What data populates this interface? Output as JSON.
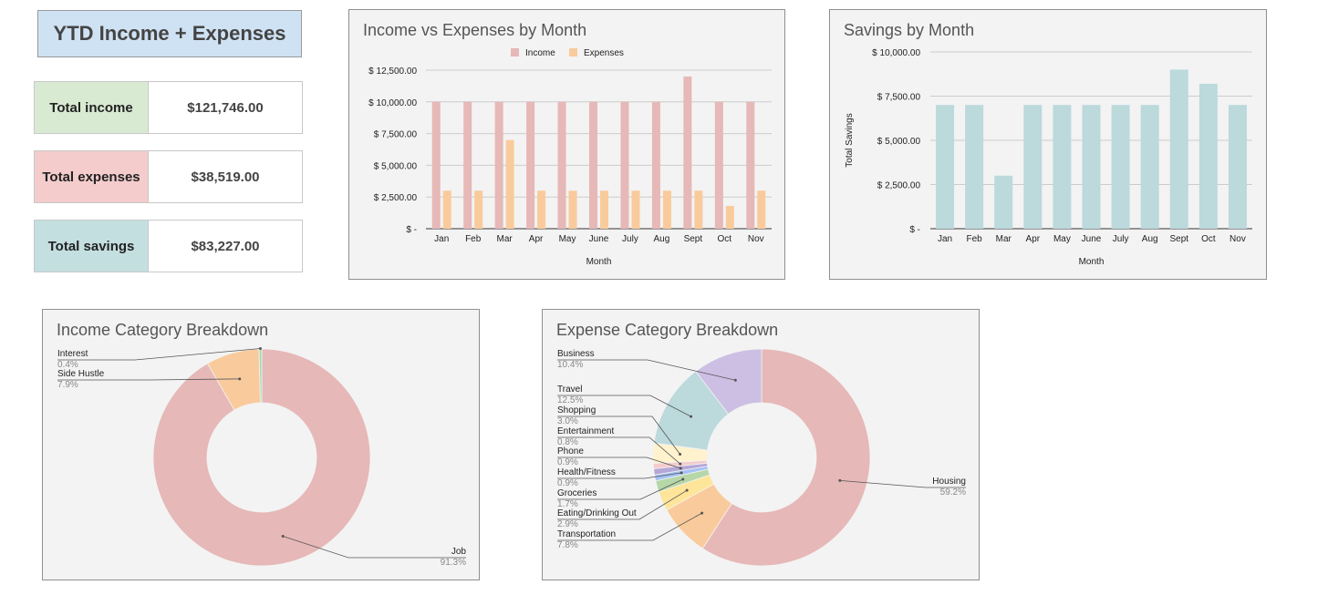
{
  "header": {
    "title": "YTD Income + Expenses"
  },
  "stats": [
    {
      "label": "Total income",
      "value": "$121,746.00",
      "color": "#d9ead3"
    },
    {
      "label": "Total expenses",
      "value": "$38,519.00",
      "color": "#f4cccc"
    },
    {
      "label": "Total savings",
      "value": "$83,227.00",
      "color": "#c4dfe0"
    }
  ],
  "colors": {
    "income": "#e6b8b7",
    "expenses": "#f9cb9c",
    "savings": "#bcd9dc",
    "panel_bg": "#f3f3f3",
    "grid": "#cccccc",
    "axis": "#333333"
  },
  "chart_data": [
    {
      "type": "bar",
      "title": "Income vs Expenses by Month",
      "xlabel": "Month",
      "ylabel": "",
      "categories": [
        "Jan",
        "Feb",
        "Mar",
        "Apr",
        "May",
        "June",
        "July",
        "Aug",
        "Sept",
        "Oct",
        "Nov"
      ],
      "series": [
        {
          "name": "Income",
          "values": [
            10000,
            10000,
            10000,
            10000,
            10000,
            10000,
            10000,
            10000,
            12000,
            10000,
            10000
          ]
        },
        {
          "name": "Expenses",
          "values": [
            3000,
            3000,
            7000,
            3000,
            3000,
            3000,
            3000,
            3000,
            3000,
            1800,
            3000
          ]
        }
      ],
      "ylim": [
        0,
        12500
      ],
      "yticks": [
        0,
        2500,
        5000,
        7500,
        10000,
        12500
      ],
      "ytick_labels": [
        "$ -",
        "$ 2,500.00",
        "$ 5,000.00",
        "$ 7,500.00",
        "$ 10,000.00",
        "$ 12,500.00"
      ],
      "grid": true,
      "legend": "top"
    },
    {
      "type": "bar",
      "title": "Savings by Month",
      "xlabel": "Month",
      "ylabel": "Total Savings",
      "categories": [
        "Jan",
        "Feb",
        "Mar",
        "Apr",
        "May",
        "June",
        "July",
        "Aug",
        "Sept",
        "Oct",
        "Nov"
      ],
      "series": [
        {
          "values": [
            7000,
            7000,
            3000,
            7000,
            7000,
            7000,
            7000,
            7000,
            9000,
            8200,
            7000
          ]
        }
      ],
      "ylim": [
        0,
        10000
      ],
      "yticks": [
        0,
        2500,
        5000,
        7500,
        10000
      ],
      "ytick_labels": [
        "$ -",
        "$ 2,500.00",
        "$ 5,000.00",
        "$ 7,500.00",
        "$ 10,000.00"
      ],
      "grid": true
    },
    {
      "type": "pie",
      "title": "Income Category Breakdown",
      "donut": true,
      "slices": [
        {
          "label": "Job",
          "pct": "91.3%",
          "value": 91.3,
          "color": "#e6b8b7"
        },
        {
          "label": "Side Hustle",
          "pct": "7.9%",
          "value": 7.9,
          "color": "#f9cb9c"
        },
        {
          "label": "Interest",
          "pct": "0.4%",
          "value": 0.4,
          "color": "#a8d8b0"
        }
      ]
    },
    {
      "type": "pie",
      "title": "Expense Category Breakdown",
      "donut": true,
      "slices": [
        {
          "label": "Housing",
          "pct": "59.2%",
          "value": 59.2,
          "color": "#e6b8b7"
        },
        {
          "label": "Transportation",
          "pct": "7.8%",
          "value": 7.8,
          "color": "#f9cb9c"
        },
        {
          "label": "Eating/Drinking Out",
          "pct": "2.9%",
          "value": 2.9,
          "color": "#ffe599"
        },
        {
          "label": "Groceries",
          "pct": "1.7%",
          "value": 1.7,
          "color": "#b6d7a8"
        },
        {
          "label": "Health/Fitness",
          "pct": "0.9%",
          "value": 0.9,
          "color": "#a4c2f4"
        },
        {
          "label": "Phone",
          "pct": "0.9%",
          "value": 0.9,
          "color": "#b4a7d6"
        },
        {
          "label": "Entertainment",
          "pct": "0.8%",
          "value": 0.8,
          "color": "#f4cccc"
        },
        {
          "label": "Shopping",
          "pct": "3.0%",
          "value": 3.0,
          "color": "#fff2cc"
        },
        {
          "label": "Travel",
          "pct": "12.5%",
          "value": 12.5,
          "color": "#bcd9dc"
        },
        {
          "label": "Business",
          "pct": "10.4%",
          "value": 10.4,
          "color": "#cdbfe3"
        }
      ]
    }
  ]
}
